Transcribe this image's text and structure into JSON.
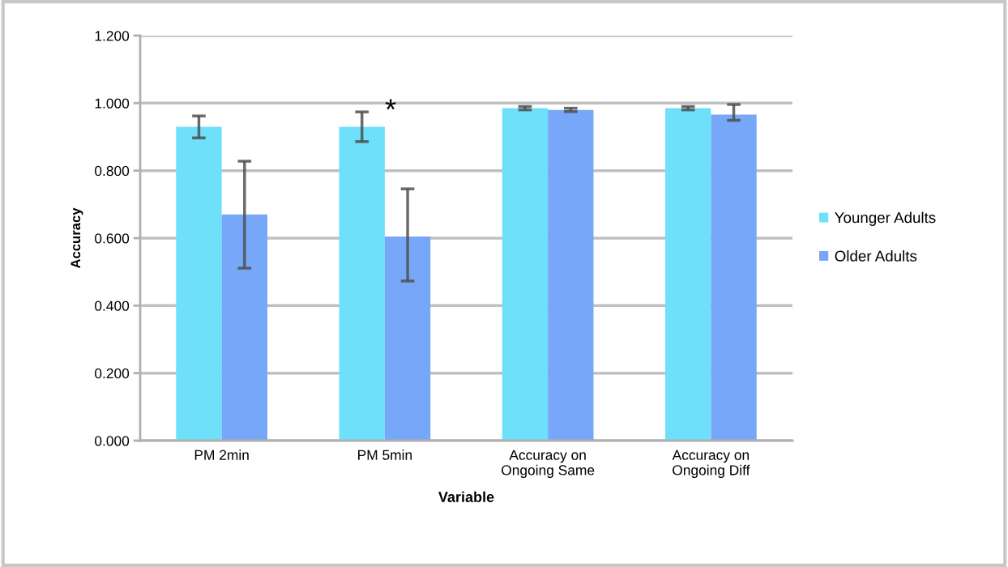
{
  "chart_data": {
    "type": "bar",
    "xlabel": "Variable",
    "ylabel": "Accuracy",
    "categories": [
      "PM 2min",
      "PM 5min",
      "Accuracy on\nOngoing Same",
      "Accuracy on\nOngoing Diff"
    ],
    "series": [
      {
        "name": "Younger Adults",
        "color": "#6ee0fa",
        "values": [
          0.93,
          0.93,
          0.985,
          0.985
        ],
        "errors": [
          [
            0.897,
            0.962
          ],
          [
            0.886,
            0.974
          ],
          [
            0.98,
            0.99
          ],
          [
            0.98,
            0.99
          ]
        ]
      },
      {
        "name": "Older Adults",
        "color": "#76a7f8",
        "values": [
          0.67,
          0.605,
          0.98,
          0.966
        ],
        "errors": [
          [
            0.511,
            0.828
          ],
          [
            0.473,
            0.746
          ],
          [
            0.975,
            0.985
          ],
          [
            0.949,
            0.996
          ]
        ]
      }
    ],
    "ylim": [
      0,
      1.2
    ],
    "yticks": [
      {
        "value": 0,
        "label": "0.000"
      },
      {
        "value": 0.2,
        "label": "0.200"
      },
      {
        "value": 0.4,
        "label": "0.400"
      },
      {
        "value": 0.6,
        "label": "0.600"
      },
      {
        "value": 0.8,
        "label": "0.800"
      },
      {
        "value": 1.0,
        "label": "1.000"
      },
      {
        "value": 1.2,
        "label": "1.200"
      }
    ],
    "grid": "y",
    "legend": "right",
    "annotations": [
      "*"
    ]
  }
}
